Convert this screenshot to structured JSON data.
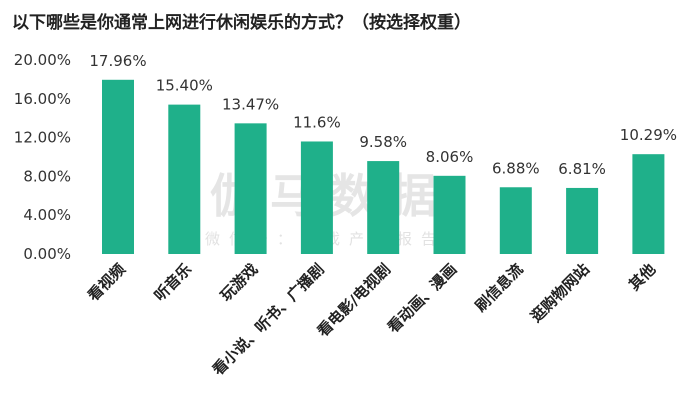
{
  "chart_data": {
    "type": "bar",
    "title": "以下哪些是你通常上网进行休闲娱乐的方式？（按选择权重）",
    "categories": [
      "看视频",
      "听音乐",
      "玩游戏",
      "看小说、听书、广播剧",
      "看电影/电视剧",
      "看动画、漫画",
      "刷信息流",
      "逛购物网站",
      "其他"
    ],
    "values": [
      17.96,
      15.4,
      13.47,
      11.6,
      9.58,
      8.06,
      6.88,
      6.81,
      10.29
    ],
    "value_labels": [
      "17.96%",
      "15.40%",
      "13.47%",
      "11.6%",
      "9.58%",
      "8.06%",
      "6.88%",
      "6.81%",
      "10.29%"
    ],
    "ylim": [
      0,
      20
    ],
    "yticks": [
      0,
      4,
      8,
      12,
      16,
      20
    ],
    "ytick_labels": [
      "0.00%",
      "4.00%",
      "8.00%",
      "12.00%",
      "16.00%",
      "20.00%"
    ],
    "xlabel": "",
    "ylabel": "",
    "grid": false,
    "bar_color": "#1fb08a"
  },
  "watermark": {
    "main": "伽马数据",
    "sub": "微信号：游戏产业报告"
  }
}
